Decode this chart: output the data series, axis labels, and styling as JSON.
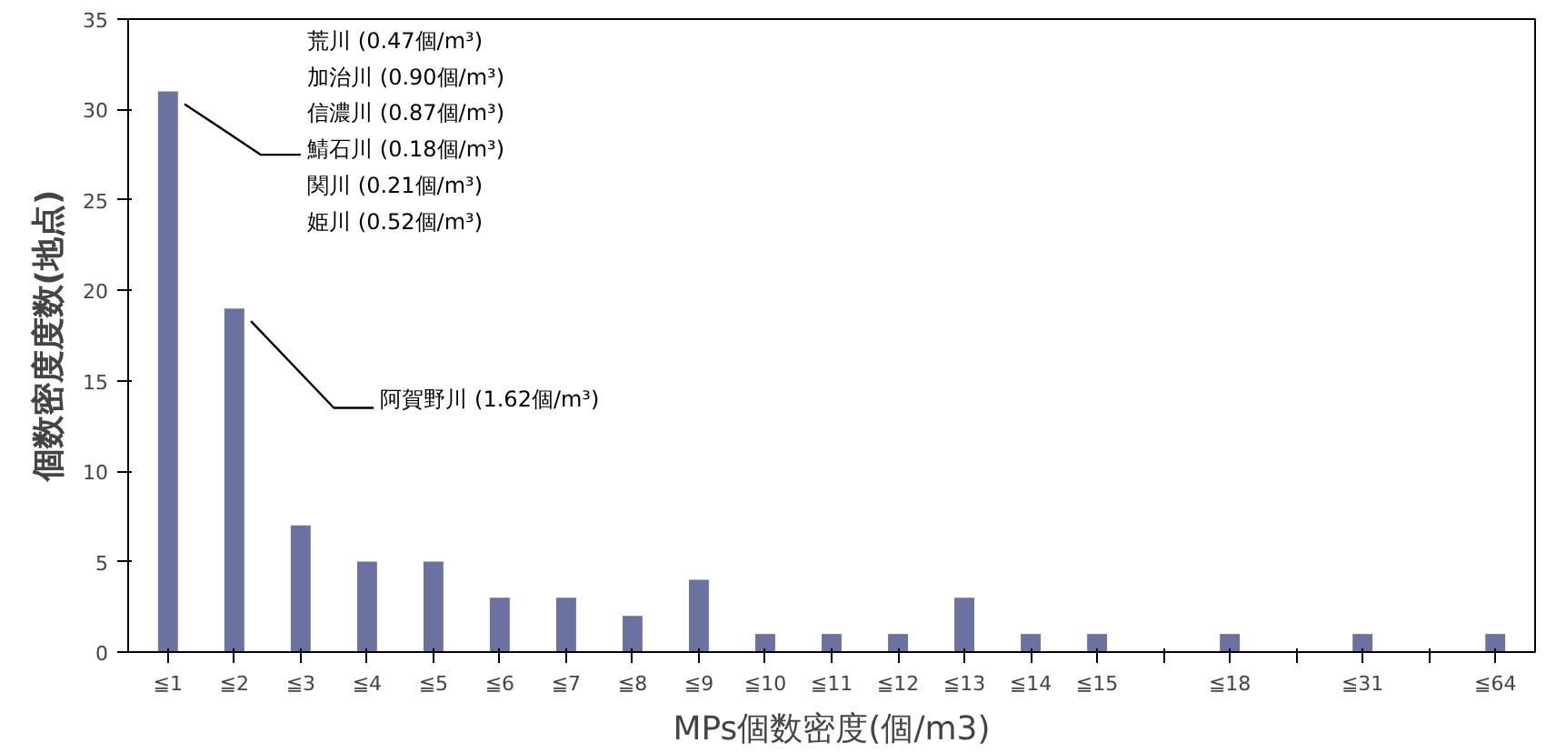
{
  "chart_data": {
    "type": "bar",
    "xlabel": "MPs個数密度(個/m3)",
    "ylabel": "個数密度度数(地点)",
    "categories": [
      "≦1",
      "≦2",
      "≦3",
      "≦4",
      "≦5",
      "≦6",
      "≦7",
      "≦8",
      "≦9",
      "≦10",
      "≦11",
      "≦12",
      "≦13",
      "≦14",
      "≦15",
      null,
      "≦18",
      null,
      "≦31",
      null,
      "≦64"
    ],
    "values": [
      31,
      19,
      7,
      5,
      5,
      3,
      3,
      2,
      4,
      1,
      1,
      1,
      3,
      1,
      1,
      null,
      1,
      null,
      1,
      null,
      1
    ],
    "color": "#6c729f",
    "ylim": [
      0,
      35
    ],
    "yticks": [
      0,
      5,
      10,
      15,
      20,
      25,
      30,
      35
    ],
    "grid": false,
    "annotations": [
      {
        "text": "荒川 (0.47個/m³)\n加治川 (0.90個/m³)\n信濃川 (0.87個/m³)\n鯖石川 (0.18個/m³)\n関川 (0.21個/m³)\n姫川 (0.52個/m³)"
      },
      {
        "text": "阿賀野川 (1.62個/m³)"
      }
    ]
  }
}
